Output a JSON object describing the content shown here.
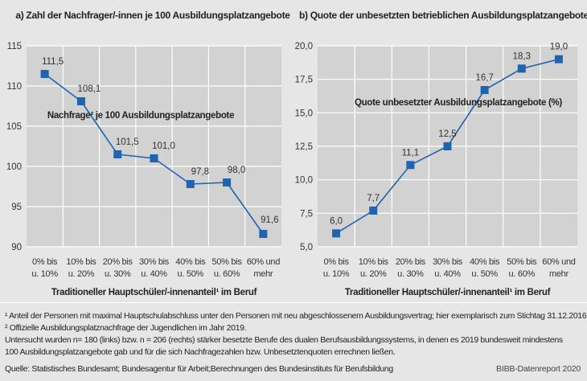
{
  "chart_data": [
    {
      "type": "line",
      "title": "a) Zahl der Nachfrager/-innen je 100 Ausbildungsplatzangebote",
      "xlabel": "Traditioneller Hauptschüler/-innenanteil¹ im Beruf",
      "ylabel": "",
      "categories": [
        [
          "0% bis",
          "u. 10%"
        ],
        [
          "10% bis",
          "u. 20%"
        ],
        [
          "20% bis",
          "u. 30%"
        ],
        [
          "30% bis",
          "u. 40%"
        ],
        [
          "40% bis",
          "u. 50%"
        ],
        [
          "50% bis",
          "u. 60%"
        ],
        [
          "60% und",
          "mehr"
        ]
      ],
      "series": [
        {
          "name": "Nachfrage² je 100 Ausbildungsplatzangebote",
          "values": [
            111.5,
            108.1,
            101.5,
            101.0,
            97.8,
            98.0,
            91.6
          ],
          "labels": [
            "111,5",
            "108,1",
            "101,5",
            "101,0",
            "97,8",
            "98,0",
            "91,6"
          ]
        }
      ],
      "ylim": [
        90,
        115
      ],
      "yticks": [
        90,
        95,
        100,
        105,
        110,
        115
      ],
      "ytick_labels": [
        "90",
        "95",
        "100",
        "105",
        "110",
        "115"
      ],
      "grid": true,
      "color": "#1f64b0"
    },
    {
      "type": "line",
      "title": "b) Quote der unbesetzten betrieblichen Ausbildungsplatzangebote",
      "xlabel": "Traditioneller Hauptschüler/-innenanteil¹ im Beruf",
      "ylabel": "",
      "categories": [
        [
          "0% bis",
          "u. 10%"
        ],
        [
          "10% bis",
          "u. 20%"
        ],
        [
          "20% bis",
          "u. 30%"
        ],
        [
          "30% bis",
          "u. 40%"
        ],
        [
          "40% bis",
          "u. 50%"
        ],
        [
          "50% bis",
          "u. 60%"
        ],
        [
          "60% und",
          "mehr"
        ]
      ],
      "series": [
        {
          "name": "Quote unbesetzter Ausbildungsplatzangebote (%)",
          "values": [
            6.0,
            7.7,
            11.1,
            12.5,
            16.7,
            18.3,
            19.0
          ],
          "labels": [
            "6,0",
            "7,7",
            "11,1",
            "12,5",
            "16,7",
            "18,3",
            "19,0"
          ]
        }
      ],
      "ylim": [
        5,
        20
      ],
      "yticks": [
        5,
        7.5,
        10,
        12.5,
        15,
        17.5,
        20
      ],
      "ytick_labels": [
        "5,0",
        "7,5",
        "10,0",
        "12,5",
        "15,0",
        "17,5",
        "20,0"
      ],
      "grid": true,
      "color": "#1f64b0"
    }
  ],
  "footnotes": [
    "¹ Anteil der Personen mit maximal Hauptschulabschluss unter den Personen mit neu abgeschlossenem Ausbildungsvertrag; hier exemplarisch zum Stichtag 31.12.2016.",
    "² Offizielle Ausbildungsplatznachfrage der Jugendlichen im Jahr 2019.",
    "Untersucht wurden n= 180 (links) bzw. n = 206 (rechts) stärker besetzte Berufe des dualen Berufsausbildungssystems, in denen es 2019 bundesweit mindestens",
    "100 Ausbildungsplatzangebote gab und für die sich Nachfragezahlen bzw. Unbesetztenquoten errechnen ließen."
  ],
  "source": "Quelle: Statistisches Bundesamt; Bundesagentur für Arbeit;Berechnungen des Bundesinstituts für Berufsbildung",
  "brand": "BIBB-Datenreport 2020"
}
